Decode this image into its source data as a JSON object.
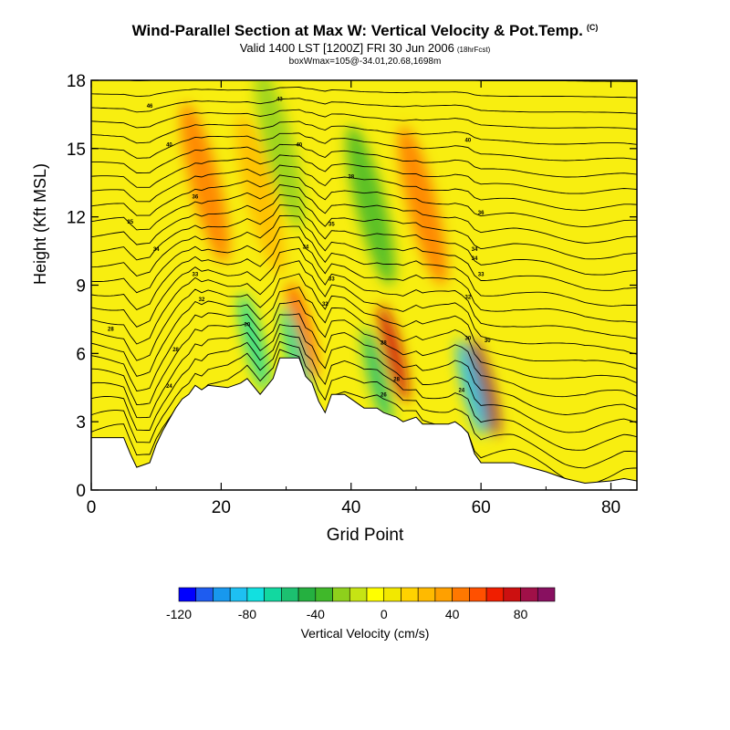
{
  "header": {
    "title": "Wind-Parallel Section at Max W: Vertical Velocity & Pot.Temp.",
    "title_mark": "(C)",
    "subtitle": "Valid 1400 LST [1200Z] FRI 30 Jun 2006",
    "subtitle_note": "(18hrFcst)",
    "info": "boxWmax=105@-34.01,20.68,1698m"
  },
  "chart_data": {
    "type": "heatmap",
    "title": "Wind-Parallel Section at Max W: Vertical Velocity & Pot.Temp.",
    "xlabel": "Grid Point",
    "ylabel": "Height (Kft MSL)",
    "xlim": [
      0,
      84
    ],
    "ylim": [
      0,
      18
    ],
    "xticks": [
      0,
      20,
      40,
      60,
      80
    ],
    "yticks": [
      0,
      3,
      6,
      9,
      12,
      15,
      18
    ],
    "terrain_kft": [
      [
        0,
        2.3
      ],
      [
        5,
        2.3
      ],
      [
        6,
        1.6
      ],
      [
        7,
        1.0
      ],
      [
        9,
        1.2
      ],
      [
        10,
        2.0
      ],
      [
        11,
        2.6
      ],
      [
        13,
        3.6
      ],
      [
        14,
        4.0
      ],
      [
        15,
        4.2
      ],
      [
        16,
        4.6
      ],
      [
        17,
        4.4
      ],
      [
        18,
        4.6
      ],
      [
        21,
        4.5
      ],
      [
        23,
        4.7
      ],
      [
        24,
        4.9
      ],
      [
        26,
        4.2
      ],
      [
        28,
        4.9
      ],
      [
        29,
        5.8
      ],
      [
        32,
        5.8
      ],
      [
        33,
        5.0
      ],
      [
        34,
        4.7
      ],
      [
        35,
        3.9
      ],
      [
        36,
        3.4
      ],
      [
        37,
        4.2
      ],
      [
        39,
        4.2
      ],
      [
        40,
        4.0
      ],
      [
        42,
        3.6
      ],
      [
        44,
        3.6
      ],
      [
        45,
        3.4
      ],
      [
        47,
        3.2
      ],
      [
        48,
        3.0
      ],
      [
        50,
        3.2
      ],
      [
        51,
        2.9
      ],
      [
        53,
        2.9
      ],
      [
        55,
        2.9
      ],
      [
        56,
        3.0
      ],
      [
        57,
        2.8
      ],
      [
        58,
        2.5
      ],
      [
        59,
        1.6
      ],
      [
        60,
        1.2
      ],
      [
        65,
        1.2
      ],
      [
        70,
        0.8
      ],
      [
        73,
        0.5
      ],
      [
        76,
        0.3
      ],
      [
        80,
        0.4
      ],
      [
        82,
        0.5
      ],
      [
        84,
        0.4
      ]
    ],
    "velocity_features": [
      {
        "name": "updraft",
        "x": 60.5,
        "y": 4.5,
        "w_cms": 105
      },
      {
        "name": "updraft",
        "x": 46.5,
        "y": 6.0,
        "w_cms": 70
      },
      {
        "name": "updraft",
        "x": 32.5,
        "y": 7.0,
        "w_cms": 55
      },
      {
        "name": "updraft",
        "x": 17.5,
        "y": 13.5,
        "w_cms": 45
      },
      {
        "name": "updraft",
        "x": 51.0,
        "y": 12.5,
        "w_cms": 40
      },
      {
        "name": "updraft",
        "x": 26.0,
        "y": 13.0,
        "w_cms": 25
      },
      {
        "name": "downdraft",
        "x": 58.5,
        "y": 4.5,
        "w_cms": -90
      },
      {
        "name": "downdraft",
        "x": 44.0,
        "y": 5.0,
        "w_cms": -60
      },
      {
        "name": "downdraft",
        "x": 31.5,
        "y": 6.0,
        "w_cms": -70
      },
      {
        "name": "downdraft",
        "x": 25.0,
        "y": 6.5,
        "w_cms": -65
      },
      {
        "name": "downdraft",
        "x": 43.0,
        "y": 12.5,
        "w_cms": -35
      },
      {
        "name": "downdraft",
        "x": 29.0,
        "y": 15.0,
        "w_cms": -30
      }
    ],
    "theta_contour_labels": [
      {
        "text": "46",
        "x": 9,
        "y": 16.9
      },
      {
        "text": "43",
        "x": 29,
        "y": 17.2
      },
      {
        "text": "40",
        "x": 12,
        "y": 15.2
      },
      {
        "text": "40",
        "x": 32,
        "y": 15.2
      },
      {
        "text": "40",
        "x": 58,
        "y": 15.4
      },
      {
        "text": "38",
        "x": 40,
        "y": 13.8
      },
      {
        "text": "36",
        "x": 16,
        "y": 12.9
      },
      {
        "text": "36",
        "x": 60,
        "y": 12.2
      },
      {
        "text": "35",
        "x": 6,
        "y": 11.8
      },
      {
        "text": "35",
        "x": 37,
        "y": 11.7
      },
      {
        "text": "34",
        "x": 10,
        "y": 10.6
      },
      {
        "text": "34",
        "x": 33,
        "y": 10.7
      },
      {
        "text": "34",
        "x": 59,
        "y": 10.6
      },
      {
        "text": "34",
        "x": 59,
        "y": 10.2
      },
      {
        "text": "33",
        "x": 16,
        "y": 9.5
      },
      {
        "text": "33",
        "x": 37,
        "y": 9.3
      },
      {
        "text": "33",
        "x": 60,
        "y": 9.5
      },
      {
        "text": "32",
        "x": 17,
        "y": 8.4
      },
      {
        "text": "32",
        "x": 36,
        "y": 8.2
      },
      {
        "text": "32",
        "x": 58,
        "y": 8.5
      },
      {
        "text": "30",
        "x": 24,
        "y": 7.3
      },
      {
        "text": "30",
        "x": 58,
        "y": 6.7
      },
      {
        "text": "30",
        "x": 61,
        "y": 6.6
      },
      {
        "text": "28",
        "x": 3,
        "y": 7.1
      },
      {
        "text": "28",
        "x": 13,
        "y": 6.2
      },
      {
        "text": "28",
        "x": 45,
        "y": 6.5
      },
      {
        "text": "28",
        "x": 47,
        "y": 4.9
      },
      {
        "text": "26",
        "x": 45,
        "y": 4.2
      },
      {
        "text": "24",
        "x": 12,
        "y": 4.6
      },
      {
        "text": "24",
        "x": 57,
        "y": 4.4
      }
    ]
  },
  "colorbar": {
    "label": "Vertical Velocity (cm/s)",
    "ticks": [
      "-120",
      "-80",
      "-40",
      "0",
      "40",
      "80"
    ],
    "tick_values": [
      -120,
      -80,
      -40,
      0,
      40,
      80
    ],
    "min": -120,
    "step": 10,
    "colors": [
      "#0000ff",
      "#1e5cf0",
      "#1898ee",
      "#1ec0f2",
      "#12e0e0",
      "#12d8a0",
      "#1cc070",
      "#25b040",
      "#40b82a",
      "#8ed01c",
      "#c6e414",
      "#ffff00",
      "#f2e800",
      "#ffd200",
      "#ffba00",
      "#ffa000",
      "#ff7800",
      "#ff5000",
      "#f01e00",
      "#cc1010",
      "#a01048",
      "#881060"
    ]
  }
}
